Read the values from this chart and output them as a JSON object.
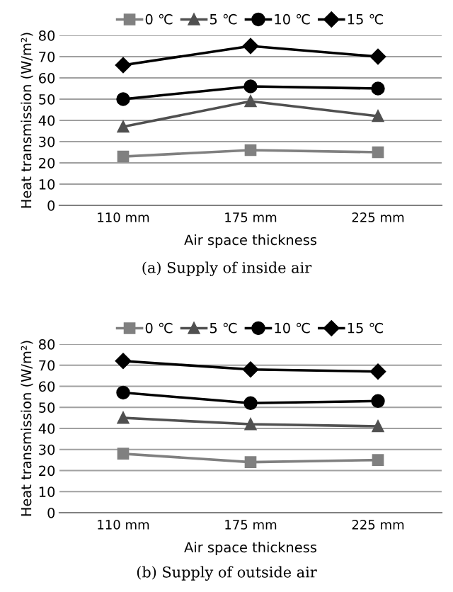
{
  "chart_data": [
    {
      "type": "line",
      "xlabel": "Air space thickness",
      "ylabel": "Heat transmission (W/m²)",
      "categories": [
        "110 mm",
        "175 mm",
        "225 mm"
      ],
      "ylim": [
        0,
        80
      ],
      "yticks": [
        0,
        10,
        20,
        30,
        40,
        50,
        60,
        70,
        80
      ],
      "grid": "y",
      "legend": "top",
      "annotations": [
        "(a) Supply of inside air"
      ],
      "series": [
        {
          "name": "0 ℃",
          "color": "#808080",
          "marker": "square",
          "values": [
            23,
            26,
            25
          ]
        },
        {
          "name": "5 ℃",
          "color": "#505050",
          "marker": "triangle",
          "values": [
            37,
            49,
            42
          ]
        },
        {
          "name": "10 ℃",
          "color": "#000000",
          "marker": "circle",
          "values": [
            50,
            56,
            55
          ]
        },
        {
          "name": "15 ℃",
          "color": "#000000",
          "marker": "diamond",
          "values": [
            66,
            75,
            70
          ]
        }
      ]
    },
    {
      "type": "line",
      "xlabel": "Air space thickness",
      "ylabel": "Heat transmission (W/m²)",
      "categories": [
        "110 mm",
        "175 mm",
        "225 mm"
      ],
      "ylim": [
        0,
        80
      ],
      "yticks": [
        0,
        10,
        20,
        30,
        40,
        50,
        60,
        70,
        80
      ],
      "grid": "y",
      "legend": "top",
      "annotations": [
        "(b) Supply of outside air"
      ],
      "series": [
        {
          "name": "0 ℃",
          "color": "#808080",
          "marker": "square",
          "values": [
            28,
            24,
            25
          ]
        },
        {
          "name": "5 ℃",
          "color": "#505050",
          "marker": "triangle",
          "values": [
            45,
            42,
            41
          ]
        },
        {
          "name": "10 ℃",
          "color": "#000000",
          "marker": "circle",
          "values": [
            57,
            52,
            53
          ]
        },
        {
          "name": "15 ℃",
          "color": "#000000",
          "marker": "diamond",
          "values": [
            72,
            68,
            67
          ]
        }
      ]
    }
  ]
}
